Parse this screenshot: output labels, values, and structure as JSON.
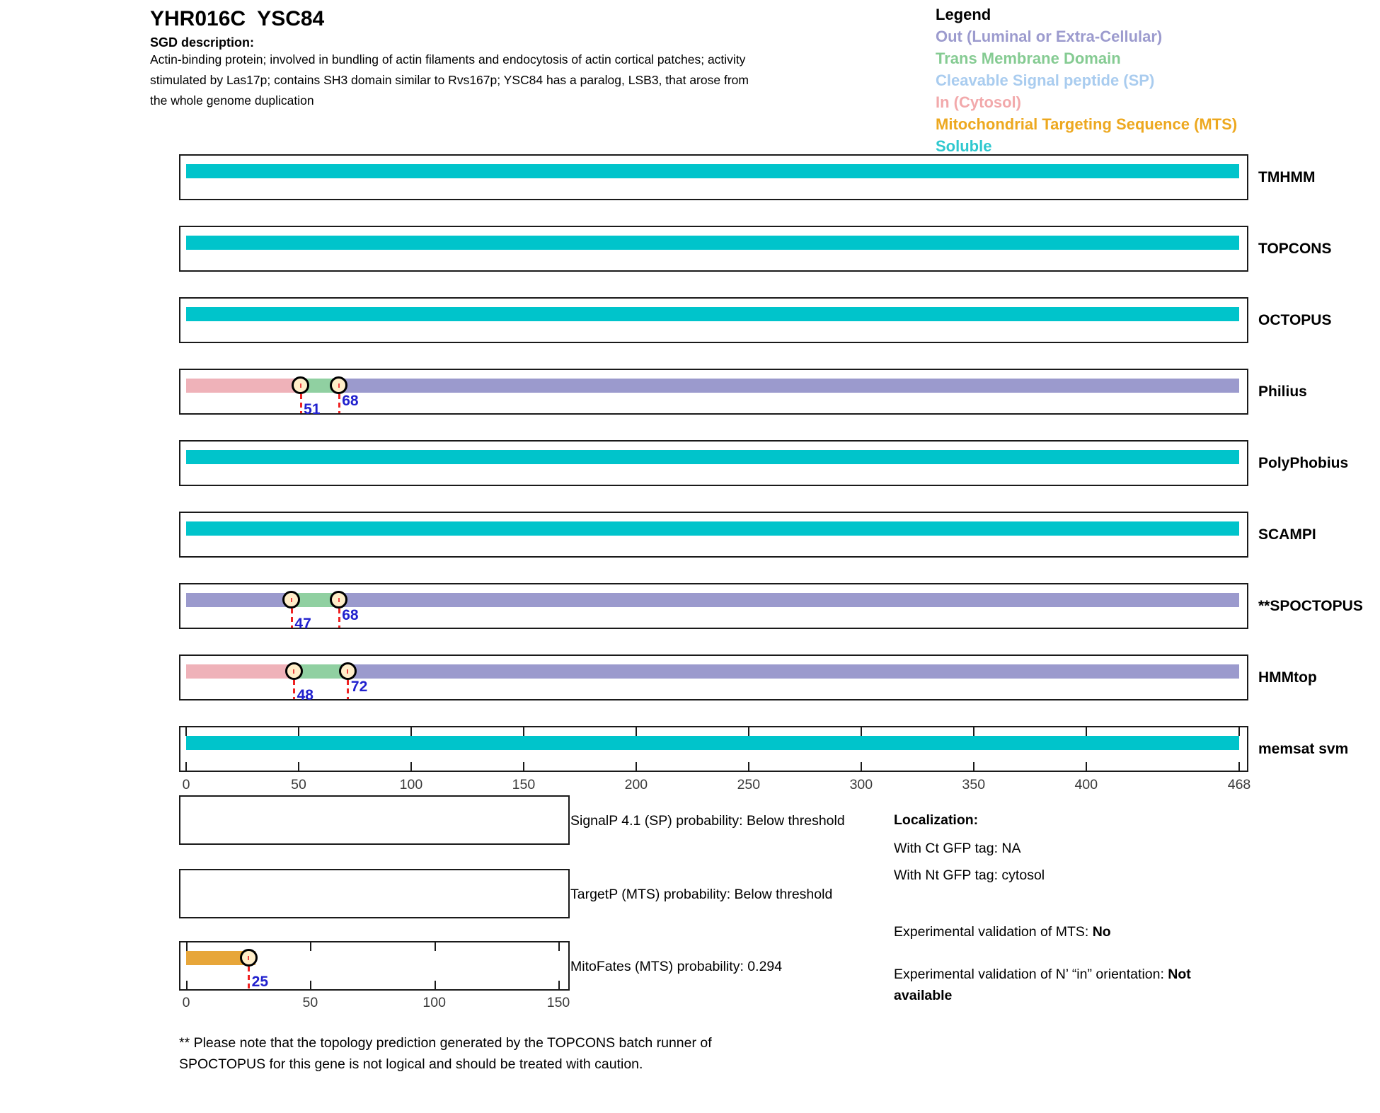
{
  "header": {
    "title": "YHR016C  YSC84",
    "sgd_label": "SGD description:",
    "description": "Actin-binding protein; involved in bundling of actin filaments and endocytosis of actin cortical patches; activity\nstimulated by Las17p; contains SH3 domain similar to Rvs167p; YSC84 has a paralog, LSB3, that arose from\nthe whole genome duplication"
  },
  "legend": {
    "title": "Legend",
    "entries": [
      {
        "label": "Out (Luminal or Extra-Cellular)",
        "color_key": "out"
      },
      {
        "label": "Trans Membrane Domain",
        "color_key": "tm"
      },
      {
        "label": "Cleavable Signal peptide (SP)",
        "color_key": "sp"
      },
      {
        "label": "In (Cytosol)",
        "color_key": "in"
      },
      {
        "label": "Mitochondrial Targeting Sequence (MTS)",
        "color_key": "mts"
      },
      {
        "label": "Soluble",
        "color_key": "soluble"
      }
    ]
  },
  "chart_data": {
    "type": "bar",
    "axis": {
      "min": 0,
      "max": 468,
      "ticks": [
        0,
        50,
        100,
        150,
        200,
        250,
        300,
        350,
        400,
        468
      ]
    },
    "tracks": [
      {
        "label": "TMHMM",
        "segments": [
          {
            "start": 0,
            "end": 468,
            "type": "soluble"
          }
        ],
        "markers": []
      },
      {
        "label": "TOPCONS",
        "segments": [
          {
            "start": 0,
            "end": 468,
            "type": "soluble"
          }
        ],
        "markers": []
      },
      {
        "label": "OCTOPUS",
        "segments": [
          {
            "start": 0,
            "end": 468,
            "type": "soluble"
          }
        ],
        "markers": []
      },
      {
        "label": "Philius",
        "segments": [
          {
            "start": 0,
            "end": 51,
            "type": "in"
          },
          {
            "start": 51,
            "end": 68,
            "type": "tm"
          },
          {
            "start": 68,
            "end": 468,
            "type": "out"
          }
        ],
        "markers": [
          {
            "value": 51,
            "label": "51"
          },
          {
            "value": 68,
            "label": "68"
          }
        ]
      },
      {
        "label": "PolyPhobius",
        "segments": [
          {
            "start": 0,
            "end": 468,
            "type": "soluble"
          }
        ],
        "markers": []
      },
      {
        "label": "SCAMPI",
        "segments": [
          {
            "start": 0,
            "end": 468,
            "type": "soluble"
          }
        ],
        "markers": []
      },
      {
        "label": "**SPOCTOPUS",
        "segments": [
          {
            "start": 0,
            "end": 47,
            "type": "out"
          },
          {
            "start": 47,
            "end": 68,
            "type": "tm"
          },
          {
            "start": 68,
            "end": 468,
            "type": "out"
          }
        ],
        "markers": [
          {
            "value": 47,
            "label": "47"
          },
          {
            "value": 68,
            "label": "68"
          }
        ]
      },
      {
        "label": "HMMtop",
        "segments": [
          {
            "start": 0,
            "end": 48,
            "type": "in"
          },
          {
            "start": 48,
            "end": 72,
            "type": "tm"
          },
          {
            "start": 72,
            "end": 468,
            "type": "out"
          }
        ],
        "markers": [
          {
            "value": 48,
            "label": "48"
          },
          {
            "value": 72,
            "label": "72"
          }
        ]
      },
      {
        "label": "memsat svm",
        "segments": [
          {
            "start": 0,
            "end": 468,
            "type": "soluble"
          }
        ],
        "markers": [],
        "inner_ticks": true,
        "show_axis": true
      }
    ],
    "mini_plots": [
      {
        "label": "SignalP 4.1 (SP) probability: Below threshold",
        "bar": null,
        "marker": null,
        "axis": null
      },
      {
        "label": "TargetP (MTS) probability: Below threshold",
        "bar": null,
        "marker": null,
        "axis": null
      },
      {
        "label": "MitoFates (MTS) probability: 0.294",
        "bar": {
          "start": 0,
          "end": 28,
          "type": "mts"
        },
        "marker": {
          "value": 25,
          "label": "25"
        },
        "axis": {
          "min": 0,
          "max": 150,
          "ticks": [
            0,
            50,
            100,
            150
          ]
        }
      }
    ]
  },
  "localization": {
    "title": "Localization:",
    "ct_line": "With Ct GFP tag: NA",
    "nt_line": "With Nt GFP tag: cytosol",
    "validation_mts": {
      "prefix": "Experimental validation of MTS: ",
      "value": "No"
    },
    "validation_orientation": {
      "prefix": "Experimental validation of N’ “in” orientation: ",
      "value": "Not available"
    }
  },
  "footnote": "** Please note that the topology prediction generated by the TOPCONS batch runner of\nSPOCTOPUS for this gene is not logical and should be treated with caution.",
  "colors": {
    "soluble": "#00C4CB",
    "out": "#9B9ACD",
    "tm": "#90D0A1",
    "in": "#EFB2B9",
    "sp": "#ABCDF0",
    "mts": "#E7A63A",
    "marker_fill": "#FFEEC9",
    "marker_text": "#2121CE",
    "legend": {
      "out": "#9C9BCE",
      "tm": "#85CB92",
      "sp": "#A9CCEF",
      "in": "#F2A9AB",
      "mts": "#EDA81F",
      "soluble": "#2FC8CF"
    }
  }
}
